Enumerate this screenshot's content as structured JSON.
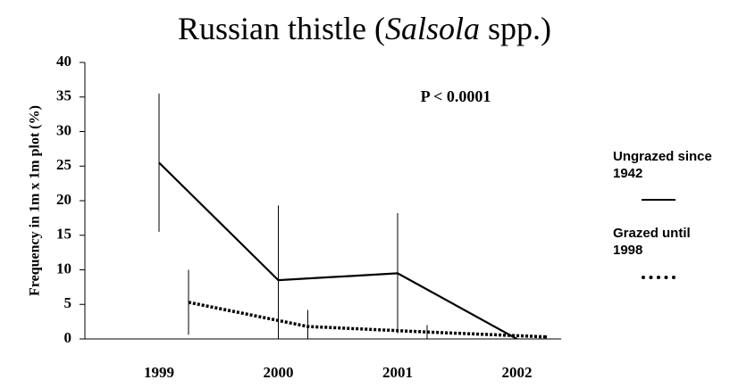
{
  "chart_data": {
    "type": "line",
    "title": [
      "Russian thistle (",
      "Salsola",
      " spp.)"
    ],
    "y_label": "Frequency in 1m x 1m plot (%)",
    "annotation": "P < 0.0001",
    "categories": [
      "1999",
      "2000",
      "2001",
      "2002"
    ],
    "series": [
      {
        "name": "Ungrazed since 1942",
        "color": "#000000",
        "style": "solid",
        "values": [
          25.5,
          8.5,
          9.5,
          0
        ],
        "errors": [
          10,
          10.8,
          8.7,
          0
        ]
      },
      {
        "name": "Grazed until 1998",
        "color": "#000000",
        "style": "dotted",
        "values": [
          5.3,
          1.8,
          1.0,
          0.3
        ],
        "errors": [
          4.7,
          2.4,
          1.0,
          0.2
        ]
      }
    ],
    "ylim": [
      0,
      40
    ],
    "yticks": [
      0,
      5,
      10,
      15,
      20,
      25,
      30,
      35,
      40
    ],
    "legend": "right"
  }
}
